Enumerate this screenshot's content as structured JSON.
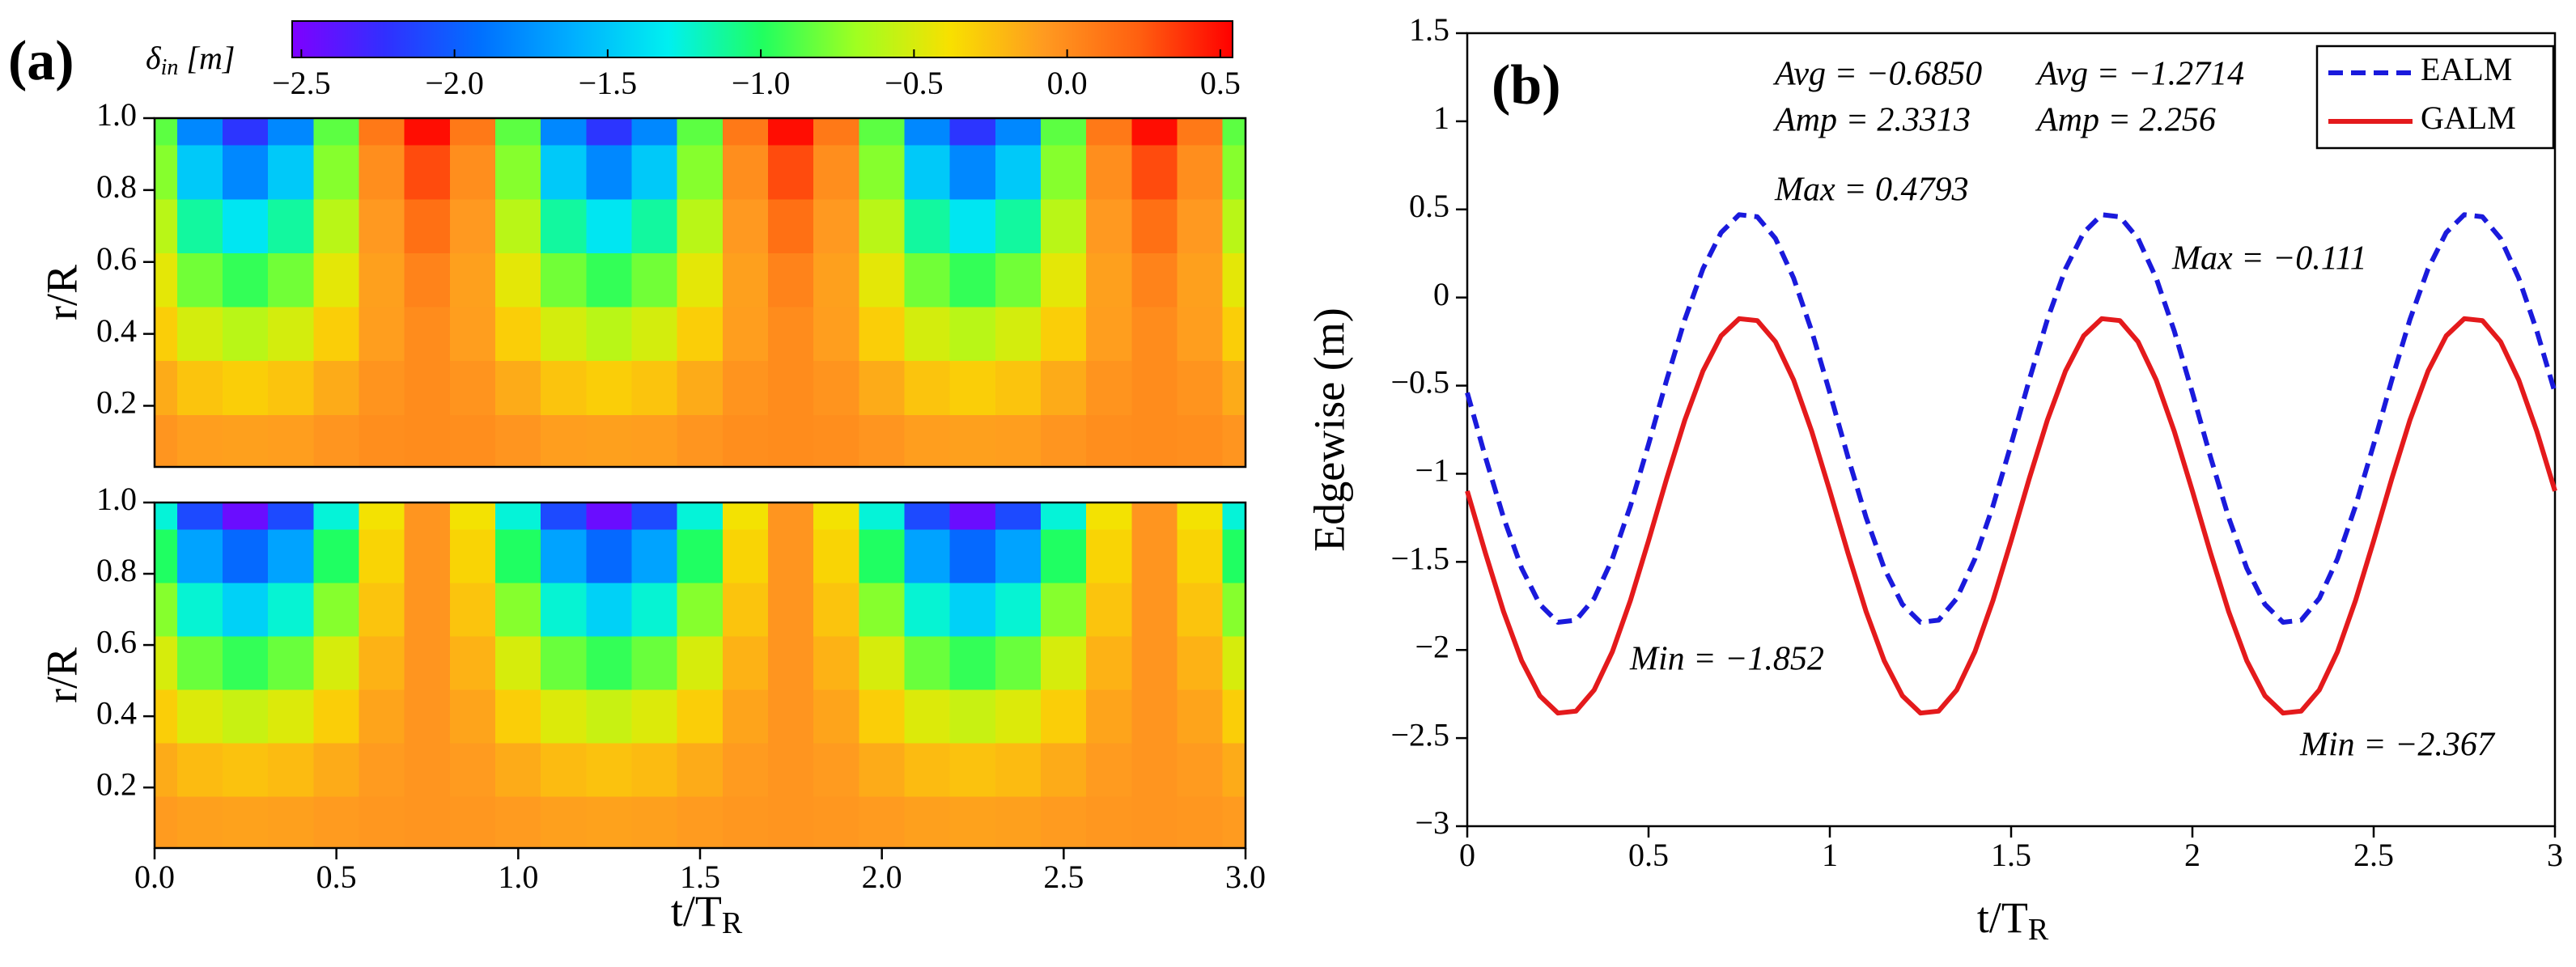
{
  "chart_data": [
    {
      "type": "contour",
      "panel_label": "(a)",
      "ylabel": "r/R",
      "colorbar": {
        "label": {
          "symbol": "δ",
          "subscript": "in",
          "unit": " [m]"
        },
        "zlim": [
          -2.53,
          0.54
        ],
        "ticks": [
          {
            "value": -2.5,
            "label": "−2.5"
          },
          {
            "value": -2.0,
            "label": "−2.0"
          },
          {
            "value": -1.5,
            "label": "−1.5"
          },
          {
            "value": -1.0,
            "label": "−1.0"
          },
          {
            "value": -0.5,
            "label": "−0.5"
          },
          {
            "value": 0,
            "label": "0.0"
          },
          0.5
        ],
        "colormap": [
          "#7f00ff",
          "#3030ff",
          "#0070ff",
          "#00b0ff",
          "#00f0f0",
          "#20ff60",
          "#a0ff20",
          "#f8e000",
          "#ff9a20",
          "#ff6010",
          "#ff0000"
        ]
      },
      "xlim": [
        0,
        3
      ],
      "ylim": [
        0.03,
        1.0
      ],
      "yticks": [
        0.2,
        0.4,
        0.6,
        0.8,
        {
          "value": 1.0,
          "label": "1.0"
        }
      ],
      "x": [
        0,
        0.125,
        0.25,
        0.375,
        0.5,
        0.625,
        0.75,
        0.875,
        1,
        1.125,
        1.25,
        1.375,
        1.5,
        1.625,
        1.75,
        1.875,
        2,
        2.125,
        2.25,
        2.375,
        2.5,
        2.625,
        2.75,
        2.875,
        3
      ],
      "y": [
        0.1,
        0.25,
        0.4,
        0.55,
        0.7,
        0.85,
        1.0
      ],
      "z": [
        [
          -0.05,
          -0.09,
          -0.1,
          -0.09,
          -0.05,
          -0.01,
          0,
          -0.01,
          -0.05,
          -0.09,
          -0.1,
          -0.09,
          -0.05,
          -0.01,
          0,
          -0.01,
          -0.05,
          -0.09,
          -0.1,
          -0.09,
          -0.05,
          -0.01,
          0,
          -0.01,
          -0.05
        ],
        [
          -0.15,
          -0.26,
          -0.3,
          -0.26,
          -0.15,
          -0.04,
          0,
          -0.04,
          -0.15,
          -0.26,
          -0.3,
          -0.26,
          -0.15,
          -0.04,
          0,
          -0.04,
          -0.15,
          -0.26,
          -0.3,
          -0.26,
          -0.15,
          -0.04,
          0,
          -0.04,
          -0.15
        ],
        [
          -0.3,
          -0.51,
          -0.6,
          -0.51,
          -0.3,
          -0.09,
          0,
          -0.09,
          -0.3,
          -0.51,
          -0.6,
          -0.51,
          -0.3,
          -0.09,
          0,
          -0.09,
          -0.3,
          -0.51,
          -0.6,
          -0.51,
          -0.3,
          -0.09,
          0,
          -0.09,
          -0.3
        ],
        [
          -0.45,
          -0.8,
          -0.95,
          -0.8,
          -0.45,
          -0.1,
          0.05,
          -0.1,
          -0.45,
          -0.8,
          -0.95,
          -0.8,
          -0.45,
          -0.1,
          0.05,
          -0.1,
          -0.45,
          -0.8,
          -0.95,
          -0.8,
          -0.45,
          -0.1,
          0.05,
          -0.1,
          -0.45
        ],
        [
          -0.6,
          -1.13,
          -1.35,
          -1.13,
          -0.6,
          -0.07,
          0.15,
          -0.07,
          -0.6,
          -1.13,
          -1.35,
          -1.13,
          -0.6,
          -0.07,
          0.15,
          -0.07,
          -0.6,
          -1.13,
          -1.35,
          -1.13,
          -0.6,
          -0.07,
          0.15,
          -0.07,
          -0.6
        ],
        [
          -0.75,
          -1.49,
          -1.8,
          -1.49,
          -0.75,
          -0.01,
          0.3,
          -0.01,
          -0.75,
          -1.49,
          -1.8,
          -1.49,
          -0.75,
          -0.01,
          0.3,
          -0.01,
          -0.75,
          -1.49,
          -1.8,
          -1.49,
          -0.75,
          -0.01,
          0.3,
          -0.01,
          -0.75
        ],
        [
          -0.85,
          -1.8,
          -2.2,
          -1.8,
          -0.85,
          0.1,
          0.5,
          0.1,
          -0.85,
          -1.8,
          -2.2,
          -1.8,
          -0.85,
          0.1,
          0.5,
          0.1,
          -0.85,
          -1.8,
          -2.2,
          -1.8,
          -0.85,
          0.1,
          0.5,
          0.1,
          -0.85
        ]
      ]
    },
    {
      "type": "contour",
      "ylabel": "r/R",
      "xlabel": {
        "text": "t/T",
        "subscript": "R"
      },
      "xlim": [
        0,
        3
      ],
      "ylim": [
        0.03,
        1.0
      ],
      "yticks": [
        0.2,
        0.4,
        0.6,
        0.8,
        {
          "value": 1.0,
          "label": "1.0"
        }
      ],
      "xticks": [
        {
          "value": 0,
          "label": "0.0"
        },
        0.5,
        {
          "value": 1,
          "label": "1.0"
        },
        1.5,
        {
          "value": 2,
          "label": "2.0"
        },
        2.5,
        {
          "value": 3,
          "label": "3.0"
        }
      ],
      "x": [
        0,
        0.125,
        0.25,
        0.375,
        0.5,
        0.625,
        0.75,
        0.875,
        1,
        1.125,
        1.25,
        1.375,
        1.5,
        1.625,
        1.75,
        1.875,
        2,
        2.125,
        2.25,
        2.375,
        2.5,
        2.625,
        2.75,
        2.875,
        3
      ],
      "y": [
        0.1,
        0.25,
        0.4,
        0.55,
        0.7,
        0.85,
        1.0
      ],
      "z": [
        [
          -0.08,
          -0.1,
          -0.11,
          -0.1,
          -0.08,
          -0.06,
          -0.05,
          -0.06,
          -0.08,
          -0.1,
          -0.11,
          -0.1,
          -0.08,
          -0.06,
          -0.05,
          -0.06,
          -0.08,
          -0.1,
          -0.11,
          -0.1,
          -0.08,
          -0.06,
          -0.05,
          -0.06,
          -0.08
        ],
        [
          -0.15,
          -0.22,
          -0.25,
          -0.22,
          -0.15,
          -0.08,
          -0.05,
          -0.08,
          -0.15,
          -0.22,
          -0.25,
          -0.22,
          -0.15,
          -0.08,
          -0.05,
          -0.08,
          -0.15,
          -0.22,
          -0.25,
          -0.22,
          -0.15,
          -0.08,
          -0.05,
          -0.08,
          -0.15
        ],
        [
          -0.3,
          -0.48,
          -0.55,
          -0.48,
          -0.3,
          -0.12,
          -0.05,
          -0.12,
          -0.3,
          -0.48,
          -0.55,
          -0.48,
          -0.3,
          -0.12,
          -0.05,
          -0.12,
          -0.3,
          -0.48,
          -0.55,
          -0.48,
          -0.3,
          -0.12,
          -0.05,
          -0.12,
          -0.3
        ],
        [
          -0.5,
          -0.82,
          -0.95,
          -0.82,
          -0.5,
          -0.18,
          -0.05,
          -0.18,
          -0.5,
          -0.82,
          -0.95,
          -0.82,
          -0.5,
          -0.18,
          -0.05,
          -0.18,
          -0.5,
          -0.82,
          -0.95,
          -0.82,
          -0.5,
          -0.18,
          -0.05,
          -0.18,
          -0.5
        ],
        [
          -0.75,
          -1.24,
          -1.45,
          -1.24,
          -0.75,
          -0.26,
          -0.05,
          -0.26,
          -0.75,
          -1.24,
          -1.45,
          -1.24,
          -0.75,
          -0.26,
          -0.05,
          -0.26,
          -0.75,
          -1.24,
          -1.45,
          -1.24,
          -0.75,
          -0.26,
          -0.05,
          -0.26,
          -0.75
        ],
        [
          -1.0,
          -1.67,
          -1.95,
          -1.67,
          -1.0,
          -0.33,
          -0.05,
          -0.33,
          -1.0,
          -1.67,
          -1.95,
          -1.67,
          -1.0,
          -0.33,
          -0.05,
          -0.33,
          -1.0,
          -1.67,
          -1.95,
          -1.67,
          -1.0,
          -0.33,
          -0.05,
          -0.33,
          -1.0
        ],
        [
          -1.25,
          -2.1,
          -2.45,
          -2.1,
          -1.25,
          -0.4,
          -0.05,
          -0.4,
          -1.25,
          -2.1,
          -2.45,
          -2.1,
          -1.25,
          -0.4,
          -0.05,
          -0.4,
          -1.25,
          -2.1,
          -2.45,
          -2.1,
          -1.25,
          -0.4,
          -0.05,
          -0.4,
          -1.25
        ]
      ]
    },
    {
      "type": "line",
      "panel_label": "(b)",
      "ylabel": "Edgewise (m)",
      "xlabel": {
        "text": "t/T",
        "subscript": "R"
      },
      "xlim": [
        0,
        3
      ],
      "ylim": [
        -3,
        1.5
      ],
      "xticks": [
        0,
        0.5,
        1,
        1.5,
        2,
        2.5,
        3
      ],
      "yticks": [
        1.5,
        1,
        0.5,
        0,
        {
          "value": -0.5,
          "label": "−0.5"
        },
        {
          "value": -1,
          "label": "−1"
        },
        {
          "value": -1.5,
          "label": "−1.5"
        },
        {
          "value": -2,
          "label": "−2"
        },
        {
          "value": -2.5,
          "label": "−2.5"
        },
        {
          "value": -3,
          "label": "−3"
        }
      ],
      "legend": "upper right",
      "x": [
        0,
        0.05,
        0.1,
        0.15,
        0.2,
        0.25,
        0.3,
        0.35,
        0.4,
        0.45,
        0.5,
        0.55,
        0.6,
        0.65,
        0.7,
        0.75,
        0.8,
        0.85,
        0.9,
        0.95,
        1,
        1.05,
        1.1,
        1.15,
        1.2,
        1.25,
        1.3,
        1.35,
        1.4,
        1.45,
        1.5,
        1.55,
        1.6,
        1.65,
        1.7,
        1.75,
        1.8,
        1.85,
        1.9,
        1.95,
        2,
        2.05,
        2.1,
        2.15,
        2.2,
        2.25,
        2.3,
        2.35,
        2.4,
        2.45,
        2.5,
        2.55,
        2.6,
        2.65,
        2.7,
        2.75,
        2.8,
        2.85,
        2.9,
        2.95,
        3
      ],
      "series": [
        {
          "name": "EALM",
          "color": "#1a1adc",
          "dashed": true,
          "values": [
            -0.54,
            -0.905,
            -1.248,
            -1.536,
            -1.741,
            -1.843,
            -1.831,
            -1.708,
            -1.484,
            -1.183,
            -0.833,
            -0.468,
            -0.125,
            0.163,
            0.368,
            0.47,
            0.458,
            0.335,
            0.111,
            -0.19,
            -0.54,
            -0.905,
            -1.248,
            -1.536,
            -1.741,
            -1.843,
            -1.831,
            -1.708,
            -1.484,
            -1.183,
            -0.833,
            -0.468,
            -0.125,
            0.163,
            0.368,
            0.47,
            0.458,
            0.335,
            0.111,
            -0.19,
            -0.54,
            -0.905,
            -1.248,
            -1.536,
            -1.741,
            -1.843,
            -1.831,
            -1.708,
            -1.484,
            -1.183,
            -0.833,
            -0.468,
            -0.125,
            0.163,
            0.368,
            0.47,
            0.458,
            0.335,
            0.111,
            -0.19,
            -0.54
          ]
        },
        {
          "name": "GALM",
          "color": "#e41a1c",
          "dashed": false,
          "values": [
            -1.098,
            -1.45,
            -1.782,
            -2.061,
            -2.26,
            -2.358,
            -2.347,
            -2.227,
            -2.011,
            -1.719,
            -1.38,
            -1.028,
            -0.696,
            -0.417,
            -0.218,
            -0.12,
            -0.131,
            -0.251,
            -0.467,
            -0.759,
            -1.098,
            -1.45,
            -1.782,
            -2.061,
            -2.26,
            -2.358,
            -2.347,
            -2.227,
            -2.011,
            -1.719,
            -1.38,
            -1.028,
            -0.696,
            -0.417,
            -0.218,
            -0.12,
            -0.131,
            -0.251,
            -0.467,
            -0.759,
            -1.098,
            -1.45,
            -1.782,
            -2.061,
            -2.26,
            -2.358,
            -2.347,
            -2.227,
            -2.011,
            -1.719,
            -1.38,
            -1.028,
            -0.696,
            -0.417,
            -0.218,
            -0.12,
            -0.131,
            -0.251,
            -0.467,
            -0.759,
            -1.098
          ]
        }
      ],
      "annotations": [
        {
          "text": "Avg = −0.6850",
          "color": "#1a1adc"
        },
        {
          "text": "Avg = −1.2714",
          "color": "#e41a1c"
        },
        {
          "text": "Amp = 2.3313",
          "color": "#1a1adc"
        },
        {
          "text": "Amp = 2.256",
          "color": "#e41a1c"
        },
        {
          "text": "Max = 0.4793",
          "color": "#1a1adc"
        },
        {
          "text": "Max = −0.111",
          "color": "#e41a1c"
        },
        {
          "text": "Min = −1.852",
          "color": "#1a1adc"
        },
        {
          "text": "Min = −2.367",
          "color": "#e41a1c"
        }
      ]
    }
  ]
}
